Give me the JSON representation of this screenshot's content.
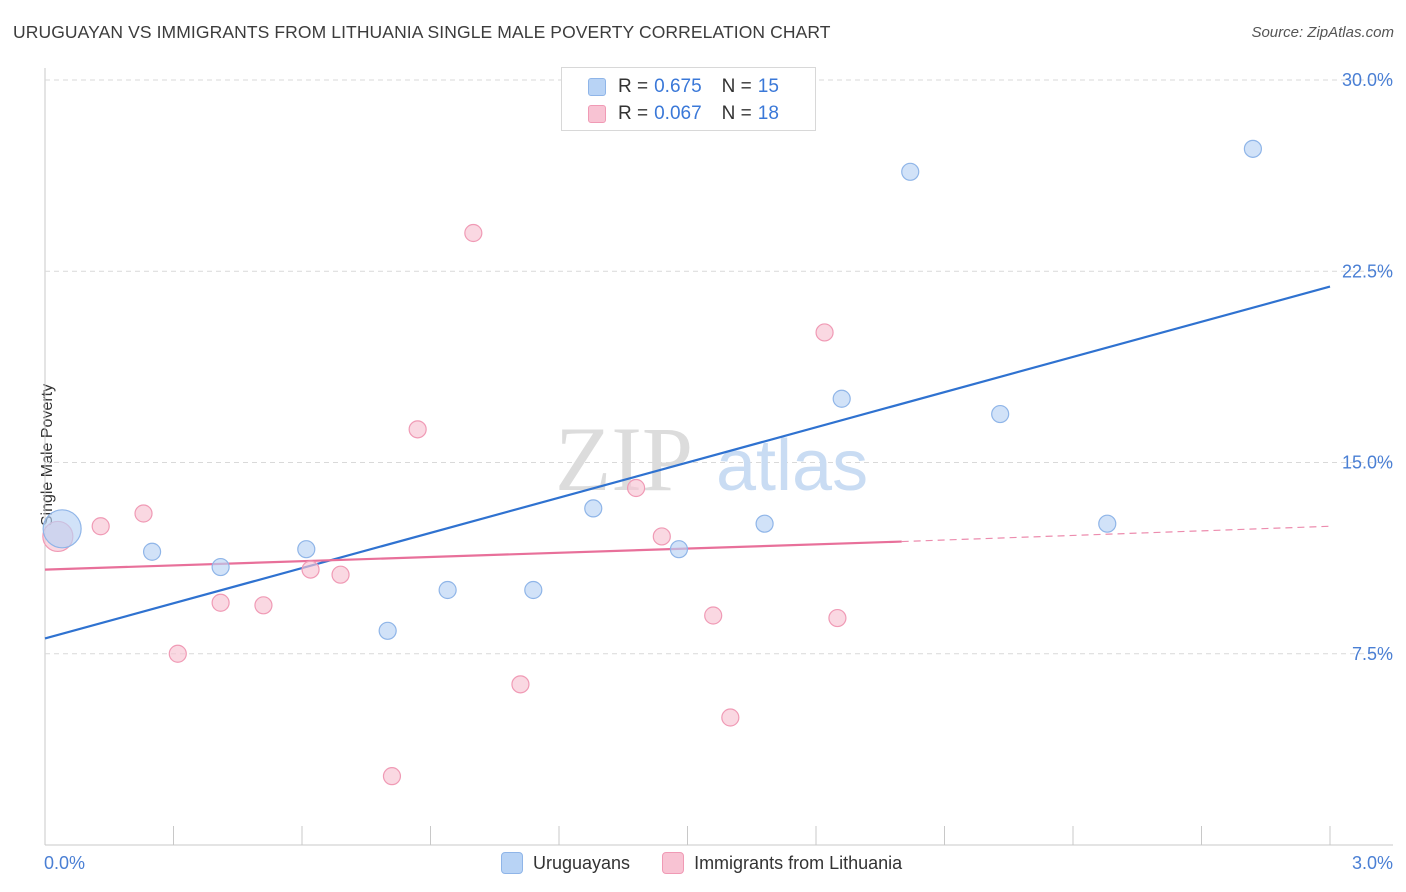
{
  "title": "URUGUAYAN VS IMMIGRANTS FROM LITHUANIA SINGLE MALE POVERTY CORRELATION CHART",
  "source": "Source: ZipAtlas.com",
  "colors": {
    "blue_fill": "#b8d3f5",
    "blue_stroke": "#8fb5e8",
    "blue_line": "#2f72d0",
    "pink_fill": "#f8c3d3",
    "pink_stroke": "#f09ab5",
    "pink_line": "#e8709a",
    "grid": "#d9d9d9",
    "tick_text": "#4a7fd4"
  },
  "legend": {
    "rows": [
      {
        "r_label": "R =",
        "r_value": "0.675",
        "n_label": "N =",
        "n_value": "15"
      },
      {
        "r_label": "R =",
        "r_value": "0.067",
        "n_label": "N =",
        "n_value": "18"
      }
    ]
  },
  "watermark": {
    "zip": "ZIP",
    "atlas": "atlas"
  },
  "chart_data": {
    "type": "scatter",
    "title": "URUGUAYAN VS IMMIGRANTS FROM LITHUANIA SINGLE MALE POVERTY CORRELATION CHART",
    "xlabel": "",
    "ylabel": "Single Male Poverty",
    "xlim": [
      0.0,
      3.0
    ],
    "ylim": [
      0.0,
      30.0
    ],
    "x_tick_labels": [
      "0.0%",
      "3.0%"
    ],
    "y_ticks": [
      7.5,
      15.0,
      22.5,
      30.0
    ],
    "y_tick_labels": [
      "7.5%",
      "15.0%",
      "22.5%",
      "30.0%"
    ],
    "grid": true,
    "series": [
      {
        "name": "Uruguayans",
        "points": [
          {
            "x": 0.04,
            "y": 12.4,
            "size": "large"
          },
          {
            "x": 0.25,
            "y": 11.5
          },
          {
            "x": 0.41,
            "y": 10.9
          },
          {
            "x": 0.61,
            "y": 11.6
          },
          {
            "x": 0.8,
            "y": 8.4
          },
          {
            "x": 0.94,
            "y": 10.0
          },
          {
            "x": 1.14,
            "y": 10.0
          },
          {
            "x": 1.28,
            "y": 13.2
          },
          {
            "x": 1.48,
            "y": 11.6
          },
          {
            "x": 1.68,
            "y": 12.6
          },
          {
            "x": 1.86,
            "y": 17.5
          },
          {
            "x": 2.02,
            "y": 26.4
          },
          {
            "x": 2.23,
            "y": 16.9
          },
          {
            "x": 2.48,
            "y": 12.6
          },
          {
            "x": 2.82,
            "y": 27.3
          }
        ],
        "trend": {
          "x": [
            0.0,
            3.0
          ],
          "y": [
            8.1,
            21.9
          ],
          "style": "solid"
        }
      },
      {
        "name": "Immigrants from Lithuania",
        "points": [
          {
            "x": 0.03,
            "y": 12.1,
            "size": "large"
          },
          {
            "x": 0.13,
            "y": 12.5
          },
          {
            "x": 0.23,
            "y": 13.0
          },
          {
            "x": 0.31,
            "y": 7.5
          },
          {
            "x": 0.41,
            "y": 9.5
          },
          {
            "x": 0.51,
            "y": 9.4
          },
          {
            "x": 0.62,
            "y": 10.8
          },
          {
            "x": 0.69,
            "y": 10.6
          },
          {
            "x": 0.81,
            "y": 2.7
          },
          {
            "x": 0.87,
            "y": 16.3
          },
          {
            "x": 1.0,
            "y": 24.0
          },
          {
            "x": 1.11,
            "y": 6.3
          },
          {
            "x": 1.38,
            "y": 14.0
          },
          {
            "x": 1.44,
            "y": 12.1
          },
          {
            "x": 1.56,
            "y": 9.0
          },
          {
            "x": 1.6,
            "y": 5.0
          },
          {
            "x": 1.82,
            "y": 20.1
          },
          {
            "x": 1.85,
            "y": 8.9
          }
        ],
        "trend": {
          "x": [
            0.0,
            2.0
          ],
          "y": [
            10.8,
            11.9
          ],
          "style": "solid",
          "extension": {
            "x": [
              2.0,
              3.0
            ],
            "y": [
              11.9,
              12.5
            ],
            "style": "dashed"
          }
        }
      }
    ]
  }
}
